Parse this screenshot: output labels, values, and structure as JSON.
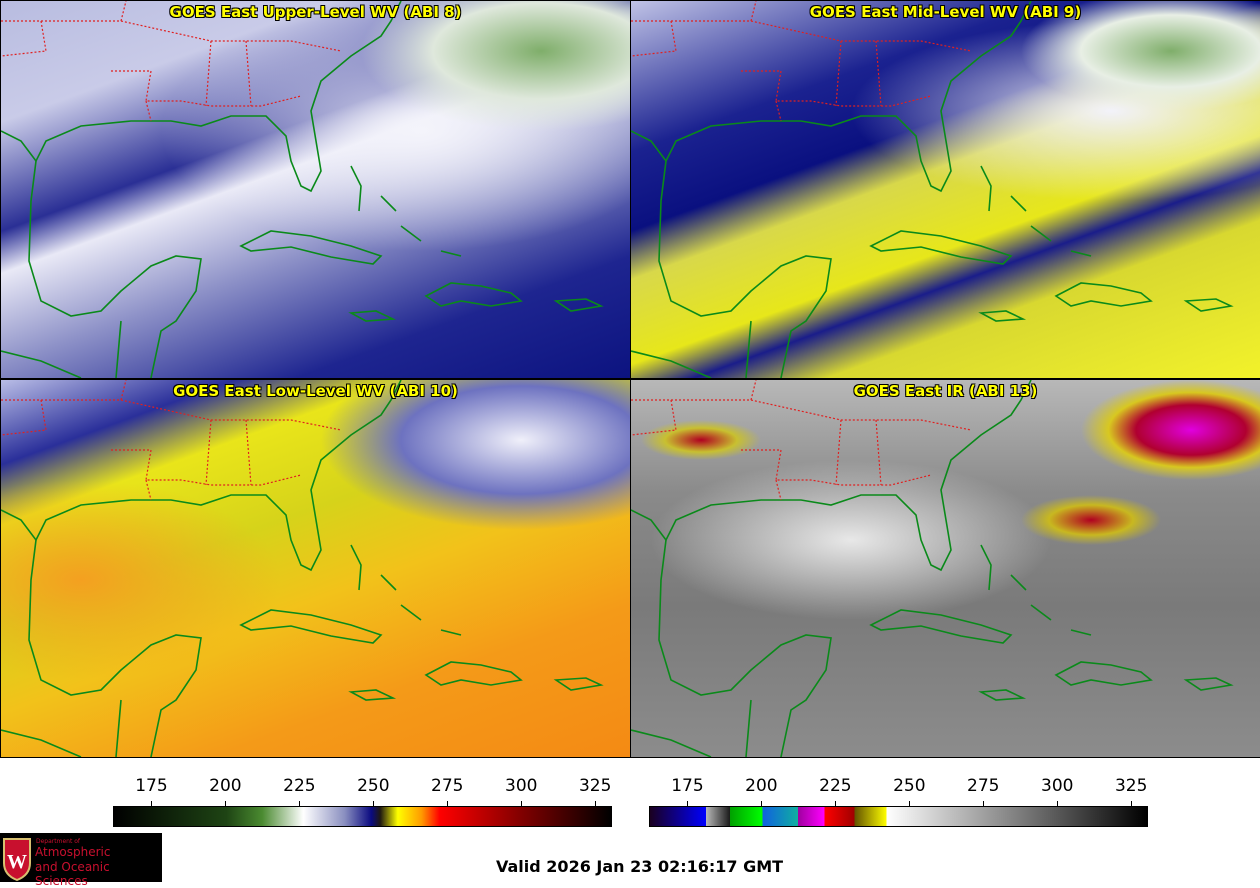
{
  "panels": [
    {
      "id": "upper",
      "title": "GOES East Upper-Level WV (ABI 8)"
    },
    {
      "id": "mid",
      "title": "GOES East Mid-Level WV (ABI 9)"
    },
    {
      "id": "low",
      "title": "GOES East Low-Level WV (ABI 10)"
    },
    {
      "id": "ir",
      "title": "GOES East IR (ABI 13)"
    }
  ],
  "colorbars": [
    {
      "name": "water-vapor",
      "range": [
        162,
        330
      ],
      "ticks": [
        "175",
        "200",
        "225",
        "250",
        "275",
        "300",
        "325"
      ]
    },
    {
      "name": "infrared",
      "range": [
        162,
        330
      ],
      "ticks": [
        "175",
        "200",
        "225",
        "250",
        "275",
        "300",
        "325"
      ]
    }
  ],
  "footer": {
    "valid_time": "Valid 2026 Jan 23 02:16:17 GMT"
  },
  "logo": {
    "line1": "Department of",
    "line2": "Atmospheric",
    "line3": "and Oceanic Sciences",
    "crest_letter": "W"
  }
}
